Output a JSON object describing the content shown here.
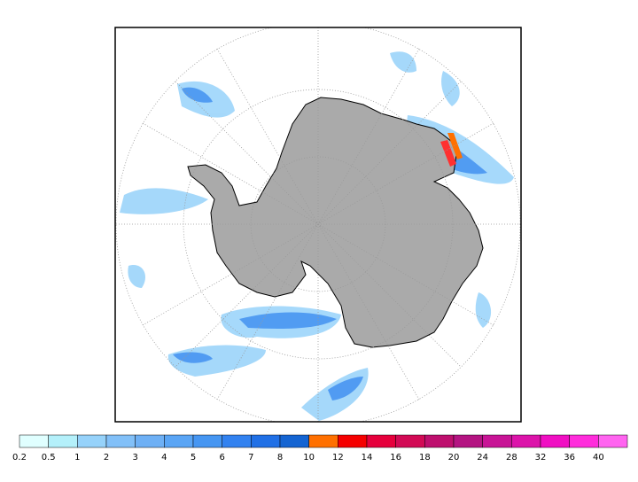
{
  "colorbar": {
    "labels": [
      0.2,
      0.5,
      1,
      2,
      3,
      4,
      5,
      6,
      7,
      8,
      10,
      12,
      14,
      16,
      18,
      20,
      24,
      28,
      32,
      36,
      40
    ],
    "colors": [
      "#e0ffff",
      "#b4f0fa",
      "#96d2fa",
      "#82c0f8",
      "#6eb0f5",
      "#5aa5f5",
      "#4696f2",
      "#3282f0",
      "#2070e6",
      "#1464d2",
      "#ff7000",
      "#f50000",
      "#e6003c",
      "#d20a55",
      "#be0f6e",
      "#b41482",
      "#c81496",
      "#dc14aa",
      "#f00fc3",
      "#ff2ddc",
      "#ff64f0"
    ]
  }
}
